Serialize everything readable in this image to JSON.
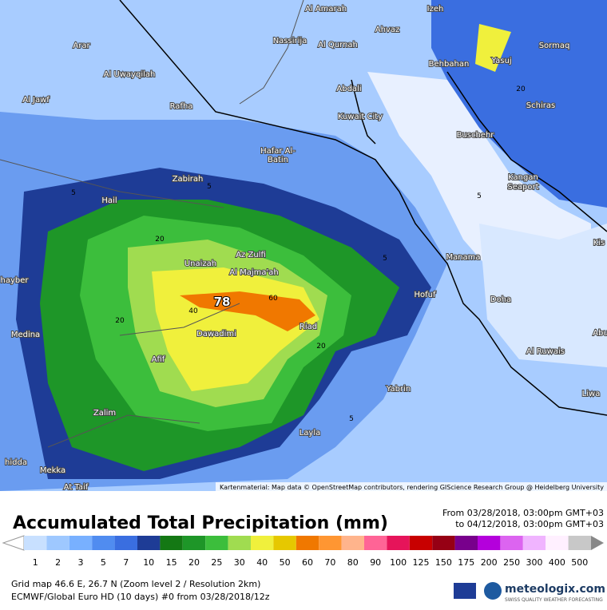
{
  "map": {
    "cities": [
      "Al Amarah",
      "Izeh",
      "Arar",
      "Nassirija",
      "Al Qurnah",
      "Ahvaz",
      "Behbahan",
      "Yasuj",
      "Sormaq",
      "Al Uwayqilah",
      "Abdali",
      "Al Jawf",
      "Rafha",
      "Kuwait City",
      "Schiras",
      "Buschehr",
      "Hafar Al-",
      "Batin",
      "Zabirah",
      "Kangan",
      "Seaport",
      "Hail",
      "Az Zulfi",
      "Unaizah",
      "Manama",
      "Al Majma'ah",
      "Hofuf",
      "Doha",
      "Riad",
      "Medina",
      "Dawadimi",
      "Afif",
      "Al Ruwais",
      "Yabrin",
      "Liwa",
      "Zalim",
      "Layla",
      "Mekka",
      "At Taif",
      "hayber",
      "hidda",
      "Kis",
      "Abu"
    ],
    "contours": [
      "5",
      "5",
      "5",
      "5",
      "5",
      "20",
      "20",
      "20",
      "20",
      "40",
      "60",
      "78"
    ],
    "attribution": "Kartenmaterial: Map data © OpenStreetMap contributors, rendering GIScience Research Group @ Heidelberg University"
  },
  "header": {
    "title": "Accumulated Total Precipitation (mm)",
    "from": "From 03/28/2018, 03:00pm GMT+03",
    "to": "to 04/12/2018, 03:00pm GMT+03"
  },
  "legend": [
    {
      "label": "1",
      "color": "#c8e0ff"
    },
    {
      "label": "2",
      "color": "#9ec8ff"
    },
    {
      "label": "3",
      "color": "#78b0ff"
    },
    {
      "label": "5",
      "color": "#508cf0"
    },
    {
      "label": "7",
      "color": "#3a6ee0"
    },
    {
      "label": "10",
      "color": "#1e3c96"
    },
    {
      "label": "15",
      "color": "#147814"
    },
    {
      "label": "20",
      "color": "#1e9628"
    },
    {
      "label": "25",
      "color": "#3cbe3c"
    },
    {
      "label": "30",
      "color": "#a0dc50"
    },
    {
      "label": "40",
      "color": "#f0f03c"
    },
    {
      "label": "50",
      "color": "#e6c800"
    },
    {
      "label": "60",
      "color": "#f07800"
    },
    {
      "label": "70",
      "color": "#ff9632"
    },
    {
      "label": "80",
      "color": "#ffb48c"
    },
    {
      "label": "90",
      "color": "#ff6496"
    },
    {
      "label": "100",
      "color": "#e6145a"
    },
    {
      "label": "125",
      "color": "#c80000"
    },
    {
      "label": "150",
      "color": "#960014"
    },
    {
      "label": "175",
      "color": "#78008c"
    },
    {
      "label": "200",
      "color": "#b400dc"
    },
    {
      "label": "250",
      "color": "#dc64f0"
    },
    {
      "label": "300",
      "color": "#f0b4ff"
    },
    {
      "label": "400",
      "color": "#fff0ff"
    },
    {
      "label": "500",
      "color": "#c8c8c8"
    }
  ],
  "footer": {
    "grid": "Grid map 46.6 E, 26.7 N (Zoom level 2 / Resolution 2km)",
    "model": "ECMWF/Global Euro HD (10 days) #0 from 03/28/2018/12z",
    "brand": "meteologix.com",
    "slogan": "SWISS QUALITY WEATHER FORECASTING"
  }
}
